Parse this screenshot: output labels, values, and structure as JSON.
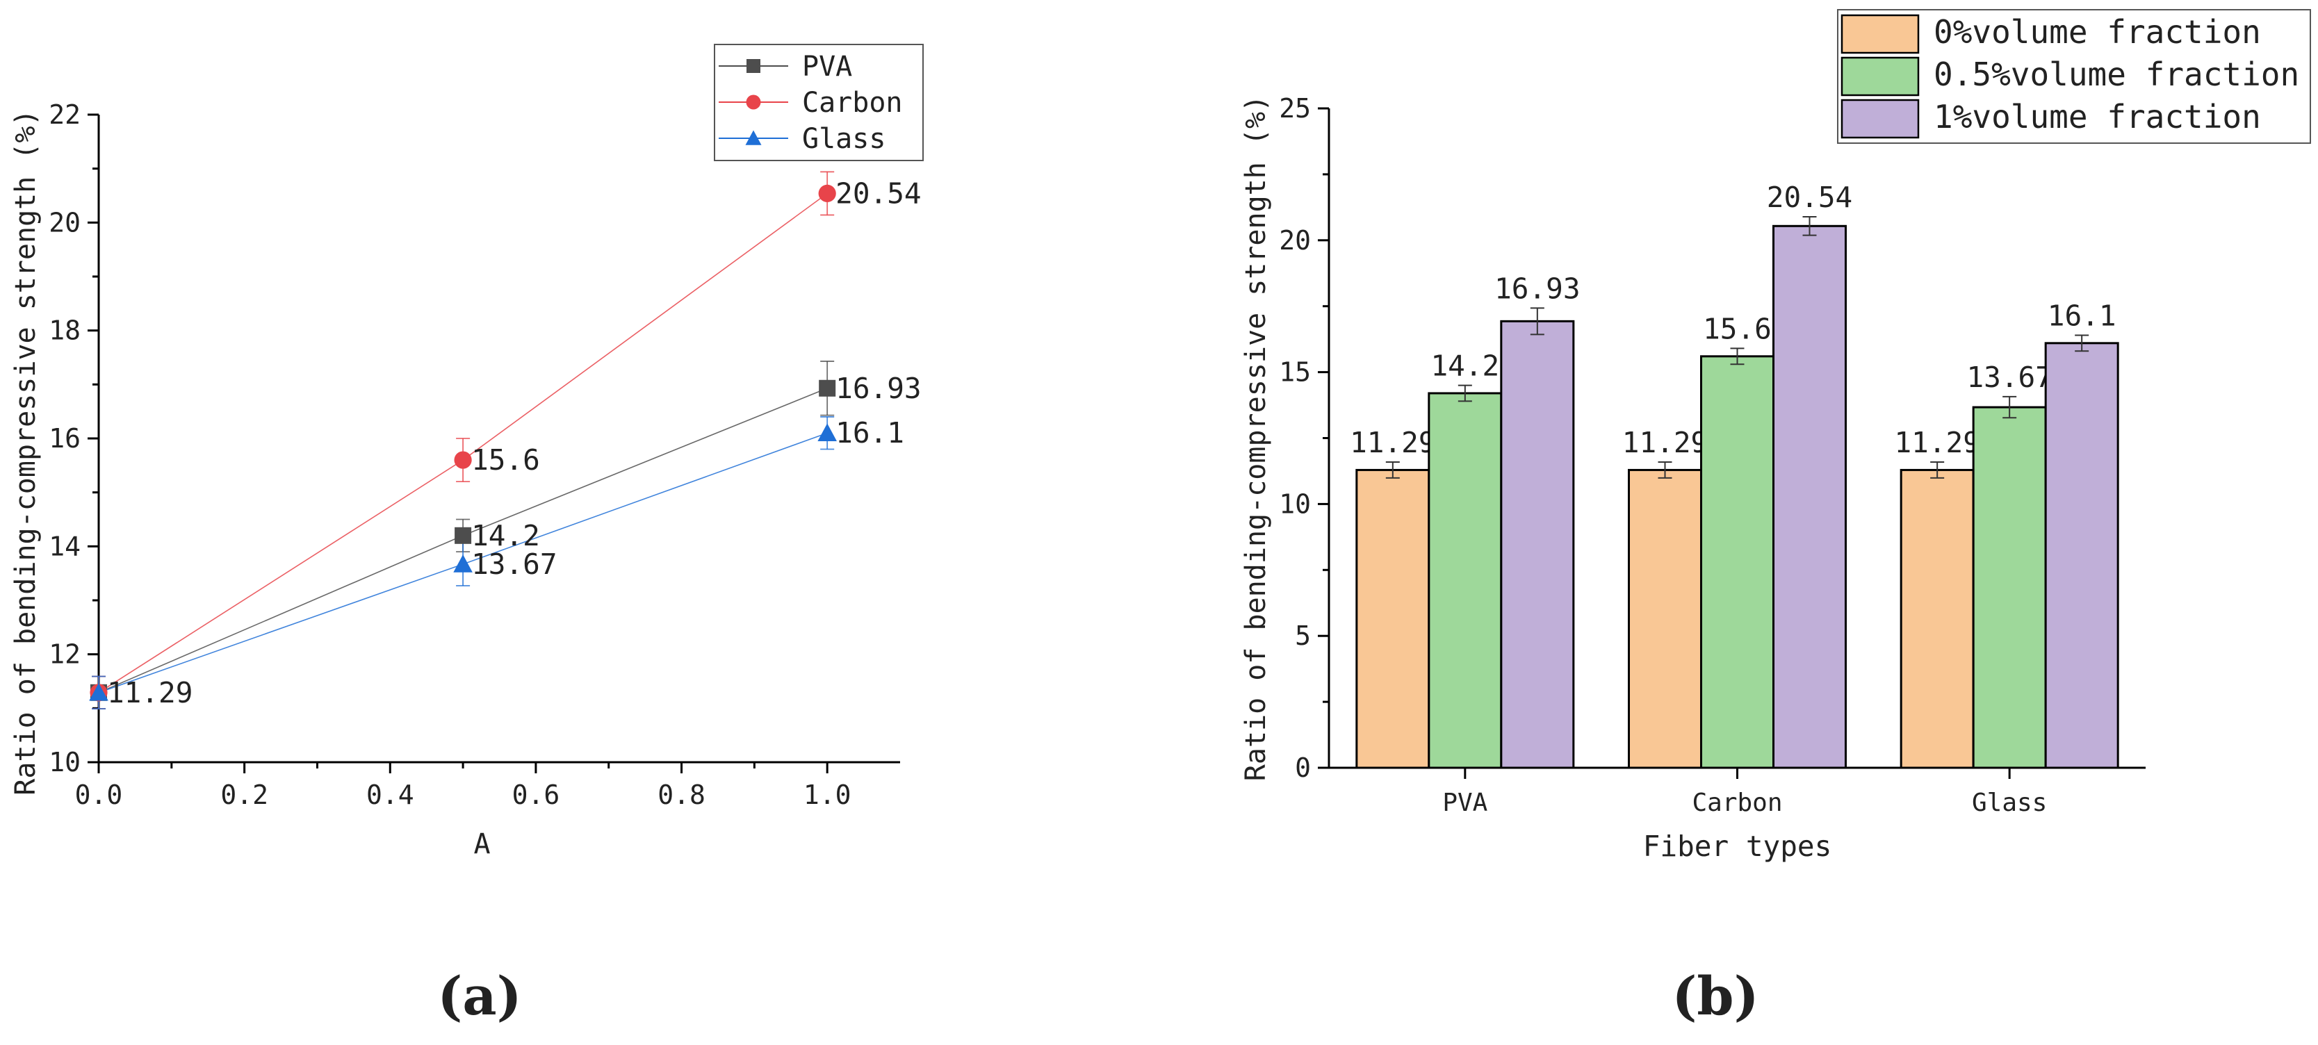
{
  "chart_data": [
    {
      "type": "line",
      "panel_label": "(a)",
      "xlabel": "A",
      "ylabel": "Ratio of bending-compressive strength (%)",
      "xlim": [
        0,
        1.1
      ],
      "ylim": [
        10,
        22
      ],
      "x_ticks": [
        0.0,
        0.2,
        0.4,
        0.6,
        0.8,
        1.0
      ],
      "x_tick_labels": [
        "0.0",
        "0.2",
        "0.4",
        "0.6",
        "0.8",
        "1.0"
      ],
      "y_ticks": [
        10,
        12,
        14,
        16,
        18,
        20,
        22
      ],
      "y_tick_labels": [
        "10",
        "12",
        "14",
        "16",
        "18",
        "20",
        "22"
      ],
      "x": [
        0,
        0.5,
        1.0
      ],
      "series": [
        {
          "name": "PVA",
          "marker": "square",
          "color": "#4d4d4d",
          "values": [
            11.29,
            14.2,
            16.93
          ],
          "errors": [
            0.3,
            0.3,
            0.5
          ]
        },
        {
          "name": "Carbon",
          "marker": "circle",
          "color": "#e8444a",
          "values": [
            11.29,
            15.6,
            20.54
          ],
          "errors": [
            0.3,
            0.4,
            0.4
          ]
        },
        {
          "name": "Glass",
          "marker": "triangle",
          "color": "#1f6fd6",
          "values": [
            11.29,
            13.67,
            16.1
          ],
          "errors": [
            0.3,
            0.4,
            0.3
          ]
        }
      ],
      "data_labels": [
        {
          "x": 0,
          "y": 11.29,
          "text": "11.29",
          "series": "Glass"
        },
        {
          "x": 0.5,
          "y": 15.6,
          "text": "15.6",
          "series": "Carbon"
        },
        {
          "x": 0.5,
          "y": 14.2,
          "text": "14.2",
          "series": "PVA"
        },
        {
          "x": 0.5,
          "y": 13.67,
          "text": "13.67",
          "series": "Glass"
        },
        {
          "x": 1.0,
          "y": 20.54,
          "text": "20.54",
          "series": "Carbon"
        },
        {
          "x": 1.0,
          "y": 16.93,
          "text": "16.93",
          "series": "PVA"
        },
        {
          "x": 1.0,
          "y": 16.1,
          "text": "16.1",
          "series": "Glass"
        }
      ],
      "legend_position": "top-right"
    },
    {
      "type": "bar",
      "panel_label": "(b)",
      "xlabel": "Fiber types",
      "ylabel": "Ratio of bending-compressive strength (%)",
      "ylim": [
        0,
        25
      ],
      "y_ticks": [
        0,
        5,
        10,
        15,
        20,
        25
      ],
      "y_tick_labels": [
        "0",
        "5",
        "10",
        "15",
        "20",
        "25"
      ],
      "categories": [
        "PVA",
        "Carbon",
        "Glass"
      ],
      "series": [
        {
          "name": "0%volume fraction",
          "color": "#f9c795",
          "values": [
            11.29,
            11.29,
            11.29
          ],
          "labels": [
            "11.29",
            "11.29",
            "11.29"
          ],
          "errors": [
            0.3,
            0.3,
            0.3
          ]
        },
        {
          "name": "0.5%volume fraction",
          "color": "#9ed89a",
          "values": [
            14.2,
            15.6,
            13.67
          ],
          "labels": [
            "14.2",
            "15.6",
            "13.67"
          ],
          "errors": [
            0.3,
            0.3,
            0.4
          ]
        },
        {
          "name": "1%volume fraction",
          "color": "#c0afd8",
          "values": [
            16.93,
            20.54,
            16.1
          ],
          "labels": [
            "16.93",
            "20.54",
            "16.1"
          ],
          "errors": [
            0.5,
            0.35,
            0.3
          ]
        }
      ],
      "legend_position": "top-right"
    }
  ]
}
